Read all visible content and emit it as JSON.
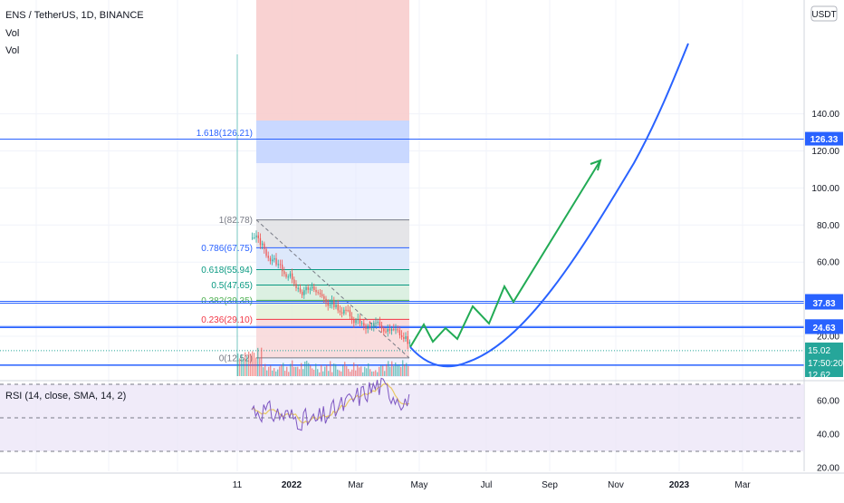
{
  "header": {
    "symbol": "ENS / TetherUS, 1D, BINANCE",
    "vol_label_1": "Vol",
    "vol_label_2": "Vol",
    "currency": "USDT"
  },
  "rsi": {
    "label": "RSI (14, close, SMA, 14, 2)",
    "ticks": [
      "60.00",
      "40.00",
      "20.00"
    ]
  },
  "chart_data": {
    "type": "line",
    "title": "",
    "price_axis": {
      "ticks": [
        140,
        120,
        100,
        80,
        60,
        20
      ],
      "tick_labels": [
        "140.00",
        "120.00",
        "100.00",
        "80.00",
        "60.00",
        "20.00"
      ]
    },
    "time_axis_labels": [
      "11",
      "2022",
      "Mar",
      "May",
      "Jul",
      "Sep",
      "Nov",
      "2023",
      "Mar"
    ],
    "fibonacci": {
      "levels": [
        {
          "label": "1(82.78)",
          "value": 82.78,
          "color": "#787b86"
        },
        {
          "label": "0.786(67.75)",
          "value": 67.75,
          "color": "#2962ff"
        },
        {
          "label": "0.618(55.94)",
          "value": 55.94,
          "color": "#089981"
        },
        {
          "label": "0.5(47.65)",
          "value": 47.65,
          "color": "#089981"
        },
        {
          "label": "0.382(39.35)",
          "value": 39.35,
          "color": "#4caf50"
        },
        {
          "label": "0.236(29.10)",
          "value": 29.1,
          "color": "#f23645"
        },
        {
          "label": "0(12.52)",
          "value": 12.52,
          "color": "#787b86"
        }
      ],
      "extension": {
        "label": "1.618(126.21)",
        "value": 126.21,
        "color": "#2962ff"
      }
    },
    "horizontal_levels": [
      {
        "label": "126.33",
        "value": 126.33
      },
      {
        "label": "38.83",
        "value": 38.83
      },
      {
        "label": "37.83",
        "value": 37.83
      },
      {
        "label": "25.23",
        "value": 25.23
      },
      {
        "label": "24.63",
        "value": 24.63
      }
    ],
    "current_price": {
      "label": "15.02",
      "value": 15.02,
      "countdown": "17:50:20",
      "color": "#26a69a"
    },
    "partial_label": "12.62",
    "projection_green": [
      [
        453,
        383
      ],
      [
        468,
        358
      ],
      [
        478,
        377
      ],
      [
        492,
        362
      ],
      [
        505,
        374
      ],
      [
        522,
        338
      ],
      [
        540,
        357
      ],
      [
        557,
        316
      ],
      [
        567,
        333
      ],
      [
        663,
        177
      ]
    ],
    "projection_blue": [
      [
        453,
        383
      ],
      [
        700,
        95
      ],
      [
        760,
        48
      ]
    ],
    "series": []
  },
  "colors": {
    "grid": "#f0f3fa",
    "blue_line": "#2962ff",
    "green_arrow": "#22ab55",
    "red_zone": "#f8caca",
    "blue_zone": "#c9d8ff",
    "rsi_bg": "#ece6f7",
    "rsi_line": "#7e57c2",
    "rsi_ma": "#e8c864"
  }
}
